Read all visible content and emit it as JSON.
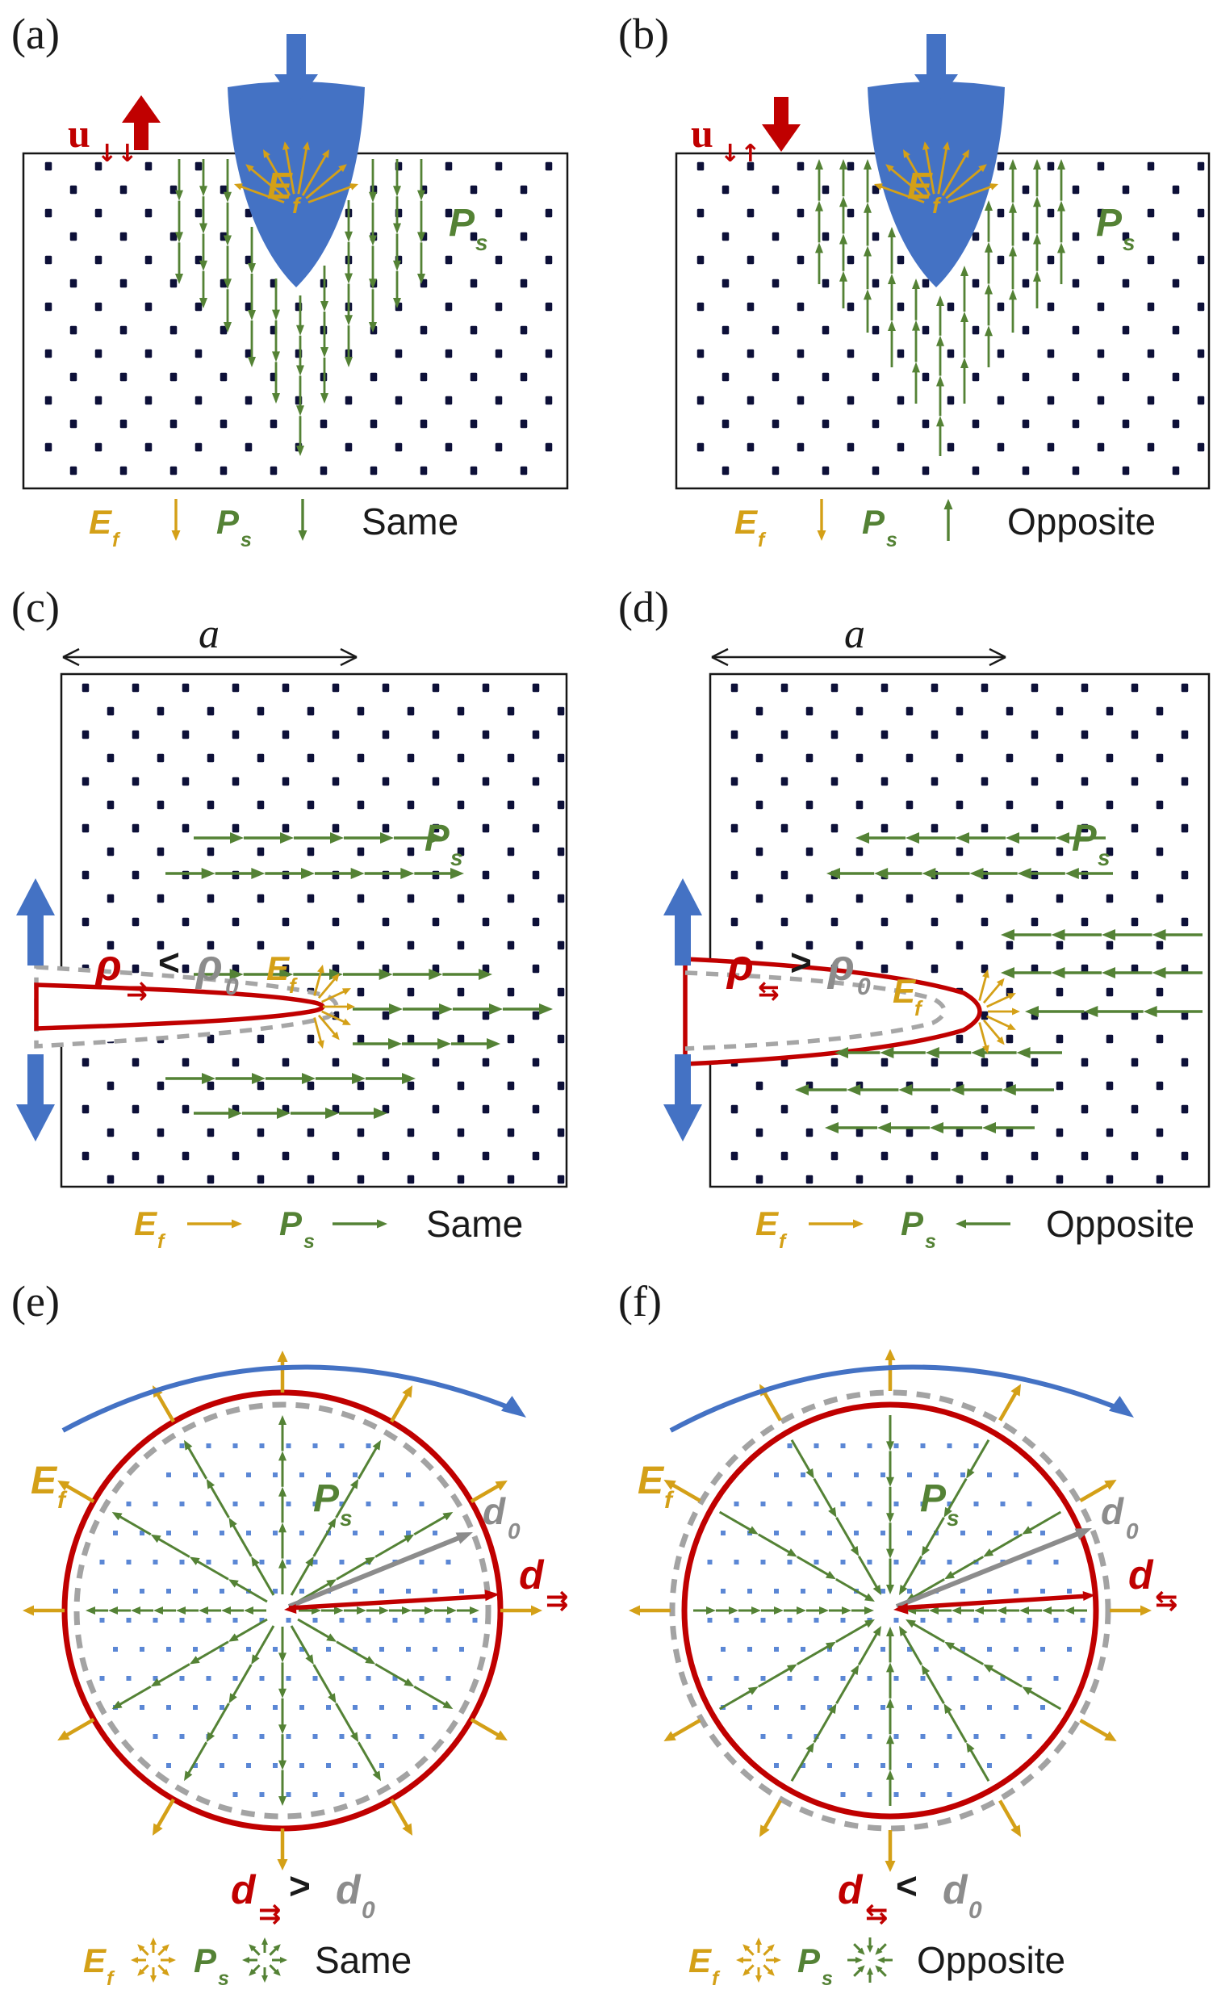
{
  "colors": {
    "blue": "#4472C4",
    "red": "#C00000",
    "green": "#548235",
    "orange": "#D4A017",
    "gray": "#A6A6A6",
    "gray_dark": "#8C8C8C",
    "lattice_dot": "#0D1038",
    "circle_dot": "#5B87D5",
    "text": "#1A1A1A"
  },
  "panels": {
    "a": {
      "tag": "(a)",
      "u_label": {
        "main": "u",
        "sub": "↓↓"
      },
      "field": {
        "main": "E",
        "sub": "f"
      },
      "polarization": {
        "main": "P",
        "sub": "s"
      },
      "legend": {
        "field": {
          "main": "E",
          "sub": "f"
        },
        "field_dir": "↓",
        "polarization": {
          "main": "P",
          "sub": "s"
        },
        "polarization_dir": "↓",
        "relation": "Same"
      }
    },
    "b": {
      "tag": "(b)",
      "u_label": {
        "main": "u",
        "sub": "↓↑"
      },
      "field": {
        "main": "E",
        "sub": "f"
      },
      "polarization": {
        "main": "P",
        "sub": "s"
      },
      "legend": {
        "field": {
          "main": "E",
          "sub": "f"
        },
        "field_dir": "↓",
        "polarization": {
          "main": "P",
          "sub": "s"
        },
        "polarization_dir": "↑",
        "relation": "Opposite"
      }
    },
    "c": {
      "tag": "(c)",
      "width_label": "a",
      "radius_relation": {
        "lhs_main": "ρ",
        "lhs_sub": "⇉",
        "op": "<",
        "rhs_main": "ρ",
        "rhs_sub": "0"
      },
      "field": {
        "main": "E",
        "sub": "f"
      },
      "polarization": {
        "main": "P",
        "sub": "s"
      },
      "legend": {
        "field": {
          "main": "E",
          "sub": "f"
        },
        "field_dir": "→",
        "polarization": {
          "main": "P",
          "sub": "s"
        },
        "polarization_dir": "→",
        "relation": "Same"
      }
    },
    "d": {
      "tag": "(d)",
      "width_label": "a",
      "radius_relation": {
        "lhs_main": "ρ",
        "lhs_sub": "⇆",
        "op": ">",
        "rhs_main": "ρ",
        "rhs_sub": "0"
      },
      "field": {
        "main": "E",
        "sub": "f"
      },
      "polarization": {
        "main": "P",
        "sub": "s"
      },
      "legend": {
        "field": {
          "main": "E",
          "sub": "f"
        },
        "field_dir": "→",
        "polarization": {
          "main": "P",
          "sub": "s"
        },
        "polarization_dir": "←",
        "relation": "Opposite"
      }
    },
    "e": {
      "tag": "(e)",
      "field": {
        "main": "E",
        "sub": "f"
      },
      "polarization": {
        "main": "P",
        "sub": "s"
      },
      "d0_label": {
        "main": "d",
        "sub": "0"
      },
      "d_label": {
        "main": "d",
        "sub": "⇉"
      },
      "diameter_relation": {
        "lhs_main": "d",
        "lhs_sub": "⇉",
        "op": ">",
        "rhs_main": "d",
        "rhs_sub": "0"
      },
      "legend": {
        "field": {
          "main": "E",
          "sub": "f"
        },
        "field_burst": "outward",
        "polarization": {
          "main": "P",
          "sub": "s"
        },
        "polarization_burst": "outward",
        "relation": "Same"
      }
    },
    "f": {
      "tag": "(f)",
      "field": {
        "main": "E",
        "sub": "f"
      },
      "polarization": {
        "main": "P",
        "sub": "s"
      },
      "d0_label": {
        "main": "d",
        "sub": "0"
      },
      "d_label": {
        "main": "d",
        "sub": "⇆"
      },
      "diameter_relation": {
        "lhs_main": "d",
        "lhs_sub": "⇆",
        "op": "<",
        "rhs_main": "d",
        "rhs_sub": "0"
      },
      "legend": {
        "field": {
          "main": "E",
          "sub": "f"
        },
        "field_burst": "outward",
        "polarization": {
          "main": "P",
          "sub": "s"
        },
        "polarization_burst": "inward",
        "relation": "Opposite"
      }
    }
  }
}
